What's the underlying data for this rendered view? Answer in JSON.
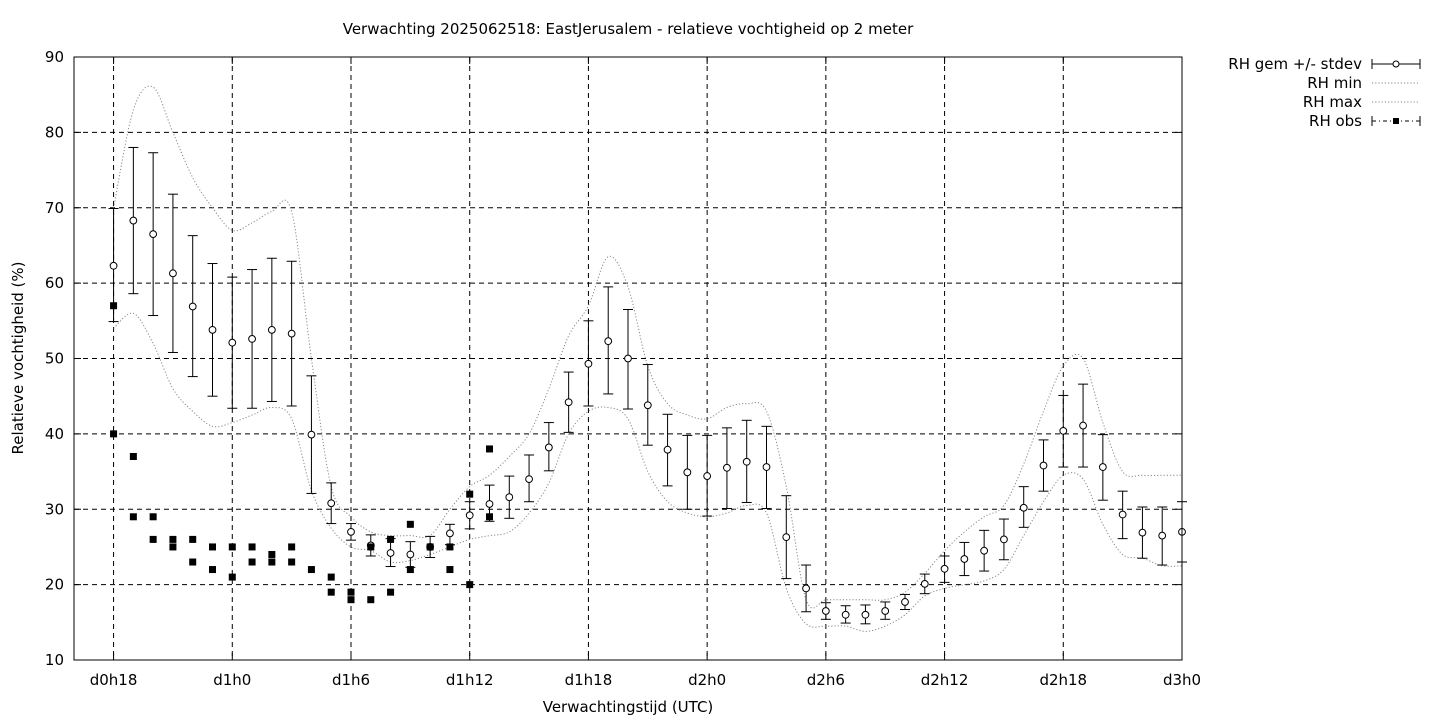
{
  "chart_data": {
    "type": "line",
    "title": "Verwachting 2025062518: EastJerusalem - relatieve vochtigheid op 2 meter",
    "xlabel": "Verwachtingstijd (UTC)",
    "ylabel": "Relatieve vochtigheid (%)",
    "ylim": [
      10,
      90
    ],
    "xlim_hours": [
      16,
      72
    ],
    "y_ticks": [
      10,
      20,
      30,
      40,
      50,
      60,
      70,
      80,
      90
    ],
    "x_ticks": [
      {
        "h": 18,
        "label": "d0h18"
      },
      {
        "h": 24,
        "label": "d1h0"
      },
      {
        "h": 30,
        "label": "d1h6"
      },
      {
        "h": 36,
        "label": "d1h12"
      },
      {
        "h": 42,
        "label": "d1h18"
      },
      {
        "h": 48,
        "label": "d2h0"
      },
      {
        "h": 54,
        "label": "d2h6"
      },
      {
        "h": 60,
        "label": "d2h12"
      },
      {
        "h": 66,
        "label": "d2h18"
      },
      {
        "h": 72,
        "label": "d3h0"
      }
    ],
    "grid": true,
    "legend_position": "outside-top-right",
    "legend": [
      {
        "key": "mean",
        "label": "RH gem +/- stdev"
      },
      {
        "key": "min",
        "label": "RH min"
      },
      {
        "key": "max",
        "label": "RH max"
      },
      {
        "key": "obs",
        "label": "RH obs"
      }
    ],
    "series": [
      {
        "name": "RH gem +/- stdev",
        "x": [
          18,
          19,
          20,
          21,
          22,
          23,
          24,
          25,
          26,
          27,
          28,
          29,
          30,
          31,
          32,
          33,
          34,
          35,
          36,
          37,
          38,
          39,
          40,
          41,
          42,
          43,
          44,
          45,
          46,
          47,
          48,
          49,
          50,
          51,
          52,
          53,
          54,
          55,
          56,
          57,
          58,
          59,
          60,
          61,
          62,
          63,
          64,
          65,
          66,
          67,
          68,
          69,
          70,
          71,
          72
        ],
        "mean": [
          62.3,
          68.3,
          66.5,
          61.3,
          56.9,
          53.8,
          52.1,
          52.6,
          53.8,
          53.3,
          39.9,
          30.8,
          27.0,
          25.2,
          24.2,
          24.0,
          25.0,
          26.8,
          29.2,
          30.7,
          31.6,
          34.0,
          38.2,
          44.2,
          49.3,
          52.3,
          50.0,
          43.8,
          37.9,
          34.9,
          34.4,
          35.5,
          36.3,
          35.6,
          26.3,
          19.5,
          16.5,
          16.0,
          16.0,
          16.5,
          17.7,
          20.1,
          22.1,
          23.4,
          24.5,
          26.0,
          30.2,
          35.8,
          40.4,
          41.1,
          35.6,
          29.3,
          26.9,
          26.5,
          27.0
        ],
        "stdev_low": [
          54.9,
          58.6,
          55.7,
          50.8,
          47.6,
          45.0,
          43.4,
          43.4,
          44.3,
          43.7,
          32.1,
          28.1,
          25.9,
          23.8,
          22.4,
          22.3,
          23.6,
          25.3,
          27.4,
          28.4,
          28.8,
          31.0,
          35.1,
          40.2,
          43.7,
          45.3,
          43.3,
          38.5,
          33.1,
          30.0,
          29.1,
          30.1,
          30.9,
          30.1,
          20.8,
          16.4,
          15.4,
          14.9,
          14.8,
          15.4,
          16.7,
          18.8,
          20.3,
          21.2,
          21.8,
          23.3,
          27.6,
          32.4,
          35.6,
          35.6,
          31.2,
          26.1,
          23.5,
          22.6,
          23.0
        ],
        "stdev_high": [
          69.9,
          78.0,
          77.3,
          71.8,
          66.3,
          62.6,
          60.8,
          61.8,
          63.3,
          62.9,
          47.7,
          33.5,
          28.1,
          26.6,
          26.1,
          25.7,
          26.4,
          28.0,
          31.0,
          33.2,
          34.4,
          37.2,
          41.5,
          48.2,
          55.0,
          59.5,
          56.5,
          49.2,
          42.6,
          39.8,
          39.8,
          40.8,
          41.8,
          41.0,
          31.8,
          22.6,
          17.6,
          17.2,
          17.3,
          17.7,
          18.7,
          21.4,
          23.8,
          25.6,
          27.2,
          28.7,
          33.0,
          39.2,
          45.1,
          46.6,
          39.9,
          32.4,
          30.3,
          30.3,
          31.0
        ]
      },
      {
        "name": "RH min",
        "x": [
          18,
          19,
          20,
          21,
          22,
          23,
          24,
          25,
          26,
          27,
          28,
          29,
          30,
          31,
          32,
          33,
          34,
          35,
          36,
          37,
          38,
          39,
          40,
          41,
          42,
          43,
          44,
          45,
          46,
          47,
          48,
          49,
          50,
          51,
          52,
          53,
          54,
          55,
          56,
          57,
          58,
          59,
          60,
          61,
          62,
          63,
          64,
          65,
          66,
          67,
          68,
          69,
          70,
          71,
          72
        ],
        "values": [
          54.0,
          56.0,
          52.0,
          46.0,
          43.0,
          41.0,
          41.5,
          42.5,
          43.5,
          42.0,
          32.5,
          27.5,
          25.0,
          24.5,
          23.0,
          23.2,
          24.0,
          25.0,
          26.0,
          26.5,
          27.0,
          29.5,
          33.5,
          40.0,
          43.0,
          43.5,
          42.0,
          35.0,
          31.0,
          29.5,
          29.0,
          29.5,
          30.5,
          29.5,
          19.5,
          14.8,
          14.5,
          14.5,
          13.8,
          14.5,
          16.0,
          18.5,
          19.5,
          20.0,
          20.5,
          22.0,
          26.5,
          31.0,
          34.5,
          34.0,
          28.0,
          24.0,
          23.5,
          22.5,
          22.5
        ]
      },
      {
        "name": "RH max",
        "x": [
          18,
          19,
          20,
          21,
          22,
          23,
          24,
          25,
          26,
          27,
          28,
          29,
          30,
          31,
          32,
          33,
          34,
          35,
          36,
          37,
          38,
          39,
          40,
          41,
          42,
          43,
          44,
          45,
          46,
          47,
          48,
          49,
          50,
          51,
          52,
          53,
          54,
          55,
          56,
          57,
          58,
          59,
          60,
          61,
          62,
          63,
          64,
          65,
          66,
          67,
          68,
          69,
          70,
          71,
          72
        ],
        "values": [
          70.0,
          83.0,
          86.0,
          80.0,
          74.0,
          70.0,
          67.0,
          68.0,
          69.5,
          69.5,
          50.0,
          33.0,
          29.0,
          27.0,
          26.5,
          26.5,
          26.5,
          30.0,
          33.0,
          34.5,
          37.0,
          40.0,
          46.0,
          53.0,
          57.0,
          63.5,
          59.5,
          49.0,
          44.0,
          42.5,
          42.0,
          43.5,
          44.0,
          43.0,
          33.0,
          18.0,
          18.0,
          18.0,
          18.0,
          18.0,
          19.0,
          21.5,
          24.5,
          27.0,
          29.0,
          30.5,
          36.0,
          43.0,
          49.0,
          50.0,
          41.5,
          35.0,
          34.5,
          34.5,
          34.5
        ]
      },
      {
        "name": "RH obs",
        "points": [
          [
            18,
            57
          ],
          [
            18,
            40
          ],
          [
            19,
            37
          ],
          [
            19,
            29
          ],
          [
            20,
            29
          ],
          [
            20,
            26
          ],
          [
            21,
            26
          ],
          [
            21,
            25
          ],
          [
            22,
            26
          ],
          [
            22,
            23
          ],
          [
            23,
            25
          ],
          [
            23,
            22
          ],
          [
            24,
            25
          ],
          [
            24,
            21
          ],
          [
            25,
            25
          ],
          [
            25,
            23
          ],
          [
            26,
            24
          ],
          [
            26,
            23
          ],
          [
            27,
            25
          ],
          [
            27,
            23
          ],
          [
            28,
            22
          ],
          [
            29,
            21
          ],
          [
            29,
            19
          ],
          [
            30,
            19
          ],
          [
            30,
            18
          ],
          [
            31,
            25
          ],
          [
            31,
            18
          ],
          [
            32,
            26
          ],
          [
            32,
            19
          ],
          [
            33,
            28
          ],
          [
            33,
            22
          ],
          [
            34,
            25
          ],
          [
            35,
            25
          ],
          [
            35,
            22
          ],
          [
            36,
            32
          ],
          [
            36,
            20
          ],
          [
            37,
            38
          ],
          [
            37,
            29
          ]
        ]
      }
    ]
  }
}
